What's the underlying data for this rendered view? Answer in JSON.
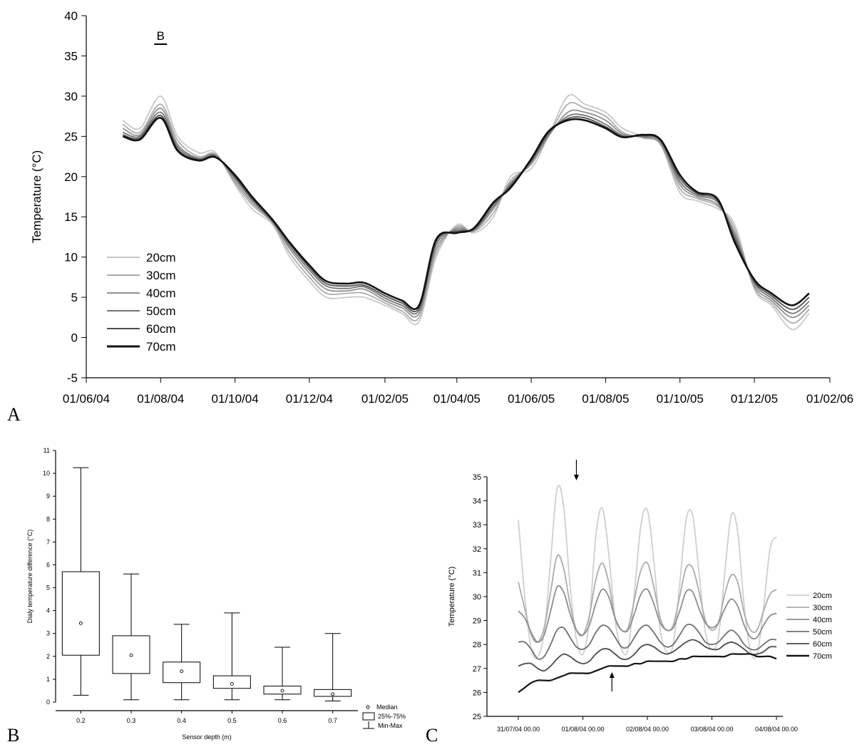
{
  "panel_labels": {
    "a": "A",
    "b": "B",
    "c": "C"
  },
  "chart_data": [
    {
      "id": "A",
      "type": "line",
      "ylabel": "Temperature (°C)",
      "ylim": [
        -5,
        40
      ],
      "yticks": [
        -5,
        0,
        5,
        10,
        15,
        20,
        25,
        30,
        35,
        40
      ],
      "xlim": [
        "01/06/04",
        "01/02/06"
      ],
      "xticks": [
        "01/06/04",
        "01/08/04",
        "01/10/04",
        "01/12/04",
        "01/02/05",
        "01/04/05",
        "01/06/05",
        "01/08/05",
        "01/10/05",
        "01/12/05",
        "01/02/06"
      ],
      "annotation": "B",
      "legend": "bottom-left",
      "x_dates": [
        "01/07/04",
        "15/07/04",
        "01/08/04",
        "15/08/04",
        "01/09/04",
        "15/09/04",
        "01/10/04",
        "15/10/04",
        "01/11/04",
        "15/11/04",
        "01/12/04",
        "15/12/04",
        "01/01/05",
        "15/01/05",
        "01/02/05",
        "15/02/05",
        "01/03/05",
        "15/03/05",
        "01/04/05",
        "15/04/05",
        "01/05/05",
        "15/05/05",
        "01/06/05",
        "15/06/05",
        "01/07/05",
        "15/07/05",
        "01/08/05",
        "15/08/05",
        "01/09/05",
        "15/09/05",
        "01/10/05",
        "15/10/05",
        "01/11/05",
        "15/11/05",
        "01/12/05",
        "15/12/05",
        "01/01/06",
        "15/01/06"
      ],
      "series": [
        {
          "name": "20cm",
          "color": "#c8c8c8",
          "values": [
            27,
            26,
            30,
            25,
            23,
            23,
            19,
            16,
            14,
            10,
            7,
            5,
            5,
            5,
            4,
            3,
            2,
            10,
            14,
            13,
            15,
            20,
            21,
            25,
            30,
            29,
            28,
            26,
            25,
            24,
            18,
            17,
            16,
            14,
            6,
            4,
            1,
            3
          ]
        },
        {
          "name": "30cm",
          "color": "#acacac",
          "values": [
            26.5,
            25.5,
            29,
            24.5,
            22.5,
            22.8,
            19.2,
            16.5,
            14.2,
            10.5,
            7.5,
            5.5,
            5.5,
            5.5,
            4.3,
            3.3,
            2.5,
            10.5,
            13.8,
            13.2,
            15.5,
            19.5,
            21.5,
            25,
            29,
            28.5,
            27.5,
            25.5,
            24.8,
            24,
            18.5,
            17.3,
            16.3,
            13.5,
            6.2,
            4.3,
            1.8,
            3.5
          ]
        },
        {
          "name": "40cm",
          "color": "#909090",
          "values": [
            26,
            25.2,
            28.5,
            24,
            22.3,
            22.7,
            19.5,
            16.8,
            14.3,
            11,
            8,
            6,
            5.8,
            6,
            4.6,
            3.7,
            3,
            11,
            13.6,
            13.3,
            16,
            19.2,
            21.7,
            25,
            28,
            28,
            27,
            25.3,
            24.9,
            24.2,
            19,
            17.5,
            16.5,
            13,
            6.5,
            4.6,
            2.5,
            4
          ]
        },
        {
          "name": "50cm",
          "color": "#737373",
          "values": [
            25.5,
            25,
            28,
            23.7,
            22.2,
            22.6,
            19.8,
            17.1,
            14.4,
            11.3,
            8.4,
            6.4,
            6.1,
            6.3,
            4.9,
            4,
            3.4,
            11.5,
            13.4,
            13.4,
            16.3,
            19,
            21.9,
            25.2,
            27.5,
            27.6,
            26.5,
            25.1,
            25,
            24.4,
            19.4,
            17.7,
            16.8,
            12.6,
            6.8,
            4.9,
            3,
            4.5
          ]
        },
        {
          "name": "60cm",
          "color": "#4e4e4e",
          "values": [
            25.2,
            24.8,
            27.6,
            23.4,
            22.1,
            22.5,
            20,
            17.3,
            14.5,
            11.6,
            8.7,
            6.7,
            6.4,
            6.5,
            5.2,
            4.3,
            3.7,
            11.9,
            13.2,
            13.5,
            16.6,
            18.8,
            22,
            25.4,
            27.2,
            27.3,
            26.2,
            25,
            25.1,
            24.5,
            19.8,
            17.9,
            17,
            12.2,
            7,
            5.2,
            3.5,
            5
          ]
        },
        {
          "name": "70cm",
          "color": "#111111",
          "values": [
            25,
            24.6,
            27.3,
            23.2,
            22,
            22.4,
            20.2,
            17.5,
            14.6,
            11.8,
            9,
            7,
            6.7,
            6.8,
            5.5,
            4.6,
            4,
            12.2,
            13,
            13.6,
            16.8,
            18.6,
            22.2,
            25.6,
            27,
            27,
            26,
            24.9,
            25.2,
            24.6,
            20.2,
            18.1,
            17.2,
            11.8,
            7.2,
            5.5,
            4,
            5.5
          ]
        }
      ]
    },
    {
      "id": "B",
      "type": "box",
      "xlabel": "Sensor depth (m)",
      "ylabel": "Dialy temperature difference (°C)",
      "ylim": [
        0,
        11
      ],
      "yticks": [
        0,
        1,
        2,
        3,
        4,
        5,
        6,
        7,
        8,
        9,
        10,
        11
      ],
      "categories": [
        "0.2",
        "0.3",
        "0.4",
        "0.5",
        "0.6",
        "0.7"
      ],
      "boxes": [
        {
          "min": 0.3,
          "q1": 2.05,
          "median": 3.45,
          "q3": 5.7,
          "max": 10.25
        },
        {
          "min": 0.1,
          "q1": 1.25,
          "median": 2.05,
          "q3": 2.9,
          "max": 5.6
        },
        {
          "min": 0.1,
          "q1": 0.85,
          "median": 1.35,
          "q3": 1.75,
          "max": 3.4
        },
        {
          "min": 0.1,
          "q1": 0.6,
          "median": 0.8,
          "q3": 1.15,
          "max": 3.9
        },
        {
          "min": 0.1,
          "q1": 0.35,
          "median": 0.5,
          "q3": 0.7,
          "max": 2.4
        },
        {
          "min": 0.05,
          "q1": 0.25,
          "median": 0.35,
          "q3": 0.55,
          "max": 3.0
        }
      ],
      "legend": {
        "median": "Median",
        "box": "25%-75%",
        "whisker": "Min-Max"
      }
    },
    {
      "id": "C",
      "type": "line",
      "ylabel": "Temperature (°C)",
      "ylim": [
        25,
        35
      ],
      "yticks": [
        25,
        26,
        27,
        28,
        29,
        30,
        31,
        32,
        33,
        34,
        35
      ],
      "xticks": [
        "31/07/04 00.00",
        "01/08/04 00.00",
        "02/08/04 00.00",
        "03/08/04 00.00",
        "04/08/04 00.00"
      ],
      "x_days": [
        0,
        0.1,
        0.2,
        0.3,
        0.4,
        0.5,
        0.6,
        0.7,
        0.8,
        0.9,
        1,
        1.1,
        1.2,
        1.3,
        1.4,
        1.5,
        1.6,
        1.7,
        1.8,
        1.9,
        2,
        2.1,
        2.2,
        2.3,
        2.4,
        2.5,
        2.6,
        2.7,
        2.8,
        2.9,
        3,
        3.1,
        3.2,
        3.3,
        3.4,
        3.5,
        3.6,
        3.7,
        3.8,
        3.9,
        4
      ],
      "arrows": [
        {
          "day": 0.9,
          "direction": "down"
        },
        {
          "day": 1.45,
          "direction": "up"
        }
      ],
      "legend": "right",
      "series": [
        {
          "name": "20cm",
          "color": "#cfcfcf",
          "values": [
            33.2,
            30.0,
            27.8,
            27.5,
            28.5,
            31.5,
            34.5,
            33.8,
            30.5,
            28.2,
            27.6,
            29.0,
            32.5,
            33.7,
            31.8,
            29.0,
            27.8,
            27.8,
            30.2,
            33.0,
            33.6,
            31.5,
            28.6,
            27.7,
            28.0,
            30.5,
            33.2,
            33.4,
            31.0,
            28.5,
            27.8,
            28.3,
            31.0,
            33.4,
            32.7,
            29.6,
            27.7,
            27.6,
            29.5,
            32.0,
            32.5
          ]
        },
        {
          "name": "30cm",
          "color": "#acacac",
          "values": [
            30.6,
            29.5,
            28.4,
            28.1,
            28.7,
            30.2,
            31.7,
            31.2,
            29.7,
            28.6,
            28.4,
            29.2,
            30.7,
            31.4,
            30.6,
            29.1,
            28.6,
            28.7,
            29.9,
            31.1,
            31.4,
            30.4,
            29.1,
            28.6,
            28.8,
            30.0,
            31.2,
            31.2,
            30.2,
            29.0,
            28.6,
            28.9,
            30.1,
            30.9,
            30.6,
            29.3,
            28.6,
            28.6,
            29.4,
            30.1,
            30.3
          ]
        },
        {
          "name": "40cm",
          "color": "#8d8d8d",
          "values": [
            29.4,
            29.1,
            28.5,
            28.1,
            28.4,
            29.4,
            30.4,
            30.2,
            29.3,
            28.6,
            28.4,
            28.8,
            29.7,
            30.3,
            30.0,
            29.1,
            28.6,
            28.6,
            29.3,
            30.1,
            30.3,
            29.7,
            28.9,
            28.6,
            28.7,
            29.4,
            30.2,
            30.2,
            29.5,
            28.9,
            28.7,
            28.9,
            29.5,
            29.9,
            29.6,
            28.8,
            28.3,
            28.3,
            28.8,
            29.2,
            29.3
          ]
        },
        {
          "name": "50cm",
          "color": "#707070",
          "values": [
            28.1,
            28.1,
            27.8,
            27.4,
            27.5,
            28.0,
            28.6,
            28.7,
            28.3,
            27.9,
            27.8,
            28.0,
            28.5,
            28.8,
            28.7,
            28.3,
            27.9,
            27.9,
            28.3,
            28.7,
            28.8,
            28.5,
            28.1,
            27.9,
            28.0,
            28.4,
            28.8,
            28.8,
            28.5,
            28.1,
            28.0,
            28.1,
            28.4,
            28.6,
            28.4,
            28.0,
            27.8,
            27.8,
            28.0,
            28.2,
            28.2
          ]
        },
        {
          "name": "60cm",
          "color": "#4a4a4a",
          "values": [
            27.1,
            27.2,
            27.2,
            27.0,
            26.9,
            27.1,
            27.4,
            27.6,
            27.5,
            27.3,
            27.2,
            27.3,
            27.6,
            27.8,
            27.8,
            27.6,
            27.4,
            27.4,
            27.6,
            27.9,
            28.0,
            27.9,
            27.7,
            27.6,
            27.7,
            27.9,
            28.1,
            28.2,
            28.1,
            27.9,
            27.8,
            27.8,
            28.0,
            28.1,
            28.0,
            27.8,
            27.6,
            27.6,
            27.7,
            27.9,
            27.9
          ]
        },
        {
          "name": "70cm",
          "color": "#151515",
          "values": [
            26.0,
            26.2,
            26.4,
            26.5,
            26.5,
            26.5,
            26.6,
            26.7,
            26.8,
            26.8,
            26.8,
            26.8,
            26.9,
            27.0,
            27.1,
            27.1,
            27.1,
            27.1,
            27.2,
            27.2,
            27.3,
            27.3,
            27.3,
            27.3,
            27.3,
            27.4,
            27.4,
            27.5,
            27.5,
            27.5,
            27.5,
            27.5,
            27.5,
            27.6,
            27.6,
            27.6,
            27.6,
            27.5,
            27.5,
            27.5,
            27.4
          ]
        }
      ]
    }
  ]
}
